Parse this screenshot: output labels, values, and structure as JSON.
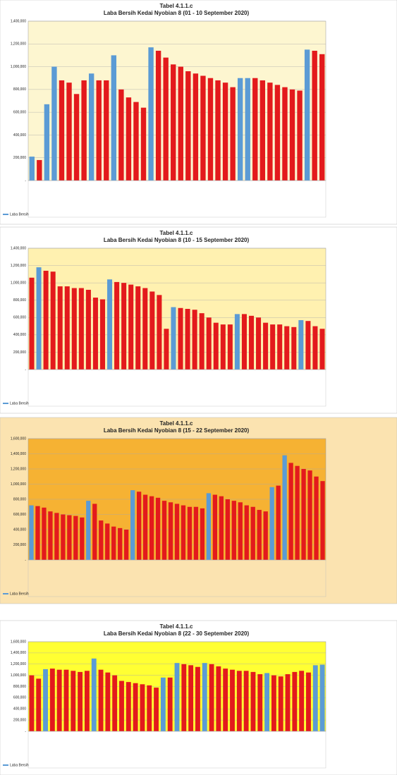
{
  "chart_data": [
    {
      "type": "bar",
      "title": "Tabel 4.1.1.c",
      "subtitle": "Laba Bersih Kedai Nyobian 8 (01 - 10 September 2020)",
      "background": "#ffffff",
      "plot_background": "#fdf6d0",
      "grid": true,
      "ylim": [
        0,
        1400000
      ],
      "yticks": [
        {
          "value": 0,
          "label": "-"
        },
        {
          "value": 200000,
          "label": "200,000"
        },
        {
          "value": 400000,
          "label": "400,000"
        },
        {
          "value": 600000,
          "label": "600,000"
        },
        {
          "value": 800000,
          "label": "800,000"
        },
        {
          "value": 1000000,
          "label": "1,000,000"
        },
        {
          "value": 1200000,
          "label": "1,200,000"
        },
        {
          "value": 1400000,
          "label": "1,400,000"
        }
      ],
      "series": [
        {
          "name": "Laba Bersih",
          "values": [
            210000,
            180000,
            670000,
            1000000,
            880000,
            860000,
            760000,
            880000,
            940000,
            880000,
            880000,
            1100000,
            800000,
            730000,
            690000,
            640000,
            1170000,
            1140000,
            1080000,
            1020000,
            1000000,
            960000,
            940000,
            920000,
            900000,
            880000,
            860000,
            820000,
            900000,
            900000,
            900000,
            880000,
            860000,
            840000,
            820000,
            800000,
            790000,
            1150000,
            1140000,
            1110000
          ],
          "colors": [
            "#5b9bd5",
            "#e31a1c",
            "#5b9bd5",
            "#5b9bd5",
            "#e31a1c",
            "#e31a1c",
            "#e31a1c",
            "#e31a1c",
            "#5b9bd5",
            "#e31a1c",
            "#e31a1c",
            "#5b9bd5",
            "#e31a1c",
            "#e31a1c",
            "#e31a1c",
            "#e31a1c",
            "#5b9bd5",
            "#e31a1c",
            "#e31a1c",
            "#e31a1c",
            "#e31a1c",
            "#e31a1c",
            "#e31a1c",
            "#e31a1c",
            "#e31a1c",
            "#e31a1c",
            "#e31a1c",
            "#e31a1c",
            "#5b9bd5",
            "#5b9bd5",
            "#e31a1c",
            "#e31a1c",
            "#e31a1c",
            "#e31a1c",
            "#e31a1c",
            "#e31a1c",
            "#e31a1c",
            "#5b9bd5",
            "#e31a1c",
            "#e31a1c"
          ]
        }
      ]
    },
    {
      "type": "bar",
      "title": "Tabel 4.1.1.c",
      "subtitle": "Laba Bersih Kedai Nyobian 8 (10 - 15 September 2020)",
      "background": "#ffffff",
      "plot_background": "#fff1b0",
      "grid": true,
      "ylim": [
        0,
        1400000
      ],
      "yticks": [
        {
          "value": 0,
          "label": "-"
        },
        {
          "value": 200000,
          "label": "200,000"
        },
        {
          "value": 400000,
          "label": "400,000"
        },
        {
          "value": 600000,
          "label": "600,000"
        },
        {
          "value": 800000,
          "label": "800,000"
        },
        {
          "value": 1000000,
          "label": "1,000,000"
        },
        {
          "value": 1200000,
          "label": "1,200,000"
        },
        {
          "value": 1400000,
          "label": "1,400,000"
        }
      ],
      "series": [
        {
          "name": "Laba Bersih",
          "values": [
            1060000,
            1180000,
            1140000,
            1130000,
            960000,
            960000,
            940000,
            940000,
            920000,
            830000,
            810000,
            1040000,
            1010000,
            1000000,
            980000,
            960000,
            940000,
            900000,
            860000,
            470000,
            720000,
            710000,
            700000,
            690000,
            650000,
            600000,
            540000,
            520000,
            520000,
            640000,
            640000,
            620000,
            600000,
            540000,
            520000,
            520000,
            500000,
            490000,
            570000,
            560000,
            500000,
            470000
          ],
          "colors": [
            "#e31a1c",
            "#5b9bd5",
            "#e31a1c",
            "#e31a1c",
            "#e31a1c",
            "#e31a1c",
            "#e31a1c",
            "#e31a1c",
            "#e31a1c",
            "#e31a1c",
            "#e31a1c",
            "#5b9bd5",
            "#e31a1c",
            "#e31a1c",
            "#e31a1c",
            "#e31a1c",
            "#e31a1c",
            "#e31a1c",
            "#e31a1c",
            "#e31a1c",
            "#5b9bd5",
            "#e31a1c",
            "#e31a1c",
            "#e31a1c",
            "#e31a1c",
            "#e31a1c",
            "#e31a1c",
            "#e31a1c",
            "#e31a1c",
            "#5b9bd5",
            "#e31a1c",
            "#e31a1c",
            "#e31a1c",
            "#e31a1c",
            "#e31a1c",
            "#e31a1c",
            "#e31a1c",
            "#e31a1c",
            "#5b9bd5",
            "#e31a1c",
            "#e31a1c",
            "#e31a1c"
          ]
        }
      ]
    },
    {
      "type": "bar",
      "title": "Tabel 4.1.1.c",
      "subtitle": "Laba Bersih Kedai Nyobian 8 (15 - 22 September 2020)",
      "background": "#fbe3b0",
      "plot_background": "#f6b233",
      "grid": true,
      "ylim": [
        0,
        1600000
      ],
      "yticks": [
        {
          "value": 0,
          "label": "-"
        },
        {
          "value": 200000,
          "label": "200,000"
        },
        {
          "value": 400000,
          "label": "400,000"
        },
        {
          "value": 600000,
          "label": "600,000"
        },
        {
          "value": 800000,
          "label": "800,000"
        },
        {
          "value": 1000000,
          "label": "1,000,000"
        },
        {
          "value": 1200000,
          "label": "1,200,000"
        },
        {
          "value": 1400000,
          "label": "1,400,000"
        },
        {
          "value": 1600000,
          "label": "1,600,000"
        }
      ],
      "series": [
        {
          "name": "Laba Bersih",
          "values": [
            720000,
            710000,
            690000,
            640000,
            620000,
            600000,
            590000,
            580000,
            560000,
            780000,
            740000,
            520000,
            480000,
            440000,
            420000,
            400000,
            920000,
            900000,
            860000,
            840000,
            820000,
            780000,
            760000,
            740000,
            720000,
            700000,
            700000,
            680000,
            880000,
            860000,
            840000,
            800000,
            780000,
            760000,
            720000,
            700000,
            660000,
            640000,
            960000,
            980000,
            1380000,
            1280000,
            1240000,
            1200000,
            1180000,
            1100000,
            1040000
          ],
          "colors": [
            "#5b9bd5",
            "#e31a1c",
            "#e31a1c",
            "#e31a1c",
            "#e31a1c",
            "#e31a1c",
            "#e31a1c",
            "#e31a1c",
            "#e31a1c",
            "#5b9bd5",
            "#e31a1c",
            "#e31a1c",
            "#e31a1c",
            "#e31a1c",
            "#e31a1c",
            "#e31a1c",
            "#5b9bd5",
            "#e31a1c",
            "#e31a1c",
            "#e31a1c",
            "#e31a1c",
            "#e31a1c",
            "#e31a1c",
            "#e31a1c",
            "#e31a1c",
            "#e31a1c",
            "#e31a1c",
            "#e31a1c",
            "#5b9bd5",
            "#e31a1c",
            "#e31a1c",
            "#e31a1c",
            "#e31a1c",
            "#e31a1c",
            "#e31a1c",
            "#e31a1c",
            "#e31a1c",
            "#e31a1c",
            "#5b9bd5",
            "#e31a1c",
            "#5b9bd5",
            "#e31a1c",
            "#e31a1c",
            "#e31a1c",
            "#e31a1c",
            "#e31a1c",
            "#e31a1c"
          ]
        }
      ]
    },
    {
      "type": "bar",
      "title": "Tabel 4.1.1.c",
      "subtitle": "Laba Bersih Kedai Nyobian 8 (22 - 30 September 2020)",
      "background": "#ffffff",
      "plot_background": "#ffff33",
      "grid": true,
      "ylim": [
        0,
        1600000
      ],
      "yticks": [
        {
          "value": 0,
          "label": "-"
        },
        {
          "value": 200000,
          "label": "200,000"
        },
        {
          "value": 400000,
          "label": "400,000"
        },
        {
          "value": 600000,
          "label": "600,000"
        },
        {
          "value": 800000,
          "label": "800,000"
        },
        {
          "value": 1000000,
          "label": "1,000,000"
        },
        {
          "value": 1200000,
          "label": "1,200,000"
        },
        {
          "value": 1400000,
          "label": "1,400,000"
        },
        {
          "value": 1600000,
          "label": "1,600,000"
        }
      ],
      "series": [
        {
          "name": "Laba Bersih",
          "values": [
            1000000,
            940000,
            1110000,
            1120000,
            1100000,
            1100000,
            1080000,
            1060000,
            1080000,
            1300000,
            1100000,
            1050000,
            1000000,
            900000,
            880000,
            860000,
            840000,
            820000,
            780000,
            960000,
            960000,
            1220000,
            1200000,
            1180000,
            1150000,
            1220000,
            1200000,
            1160000,
            1120000,
            1100000,
            1080000,
            1080000,
            1060000,
            1020000,
            1040000,
            1000000,
            980000,
            1020000,
            1060000,
            1080000,
            1050000,
            1180000,
            1190000
          ],
          "colors": [
            "#e31a1c",
            "#e31a1c",
            "#5b9bd5",
            "#e31a1c",
            "#e31a1c",
            "#e31a1c",
            "#e31a1c",
            "#e31a1c",
            "#e31a1c",
            "#5b9bd5",
            "#e31a1c",
            "#e31a1c",
            "#e31a1c",
            "#e31a1c",
            "#e31a1c",
            "#e31a1c",
            "#e31a1c",
            "#e31a1c",
            "#e31a1c",
            "#5b9bd5",
            "#e31a1c",
            "#5b9bd5",
            "#e31a1c",
            "#e31a1c",
            "#e31a1c",
            "#5b9bd5",
            "#e31a1c",
            "#e31a1c",
            "#e31a1c",
            "#e31a1c",
            "#e31a1c",
            "#e31a1c",
            "#e31a1c",
            "#e31a1c",
            "#5b9bd5",
            "#e31a1c",
            "#e31a1c",
            "#e31a1c",
            "#e31a1c",
            "#e31a1c",
            "#e31a1c",
            "#5b9bd5",
            "#5b9bd5"
          ]
        }
      ]
    }
  ]
}
